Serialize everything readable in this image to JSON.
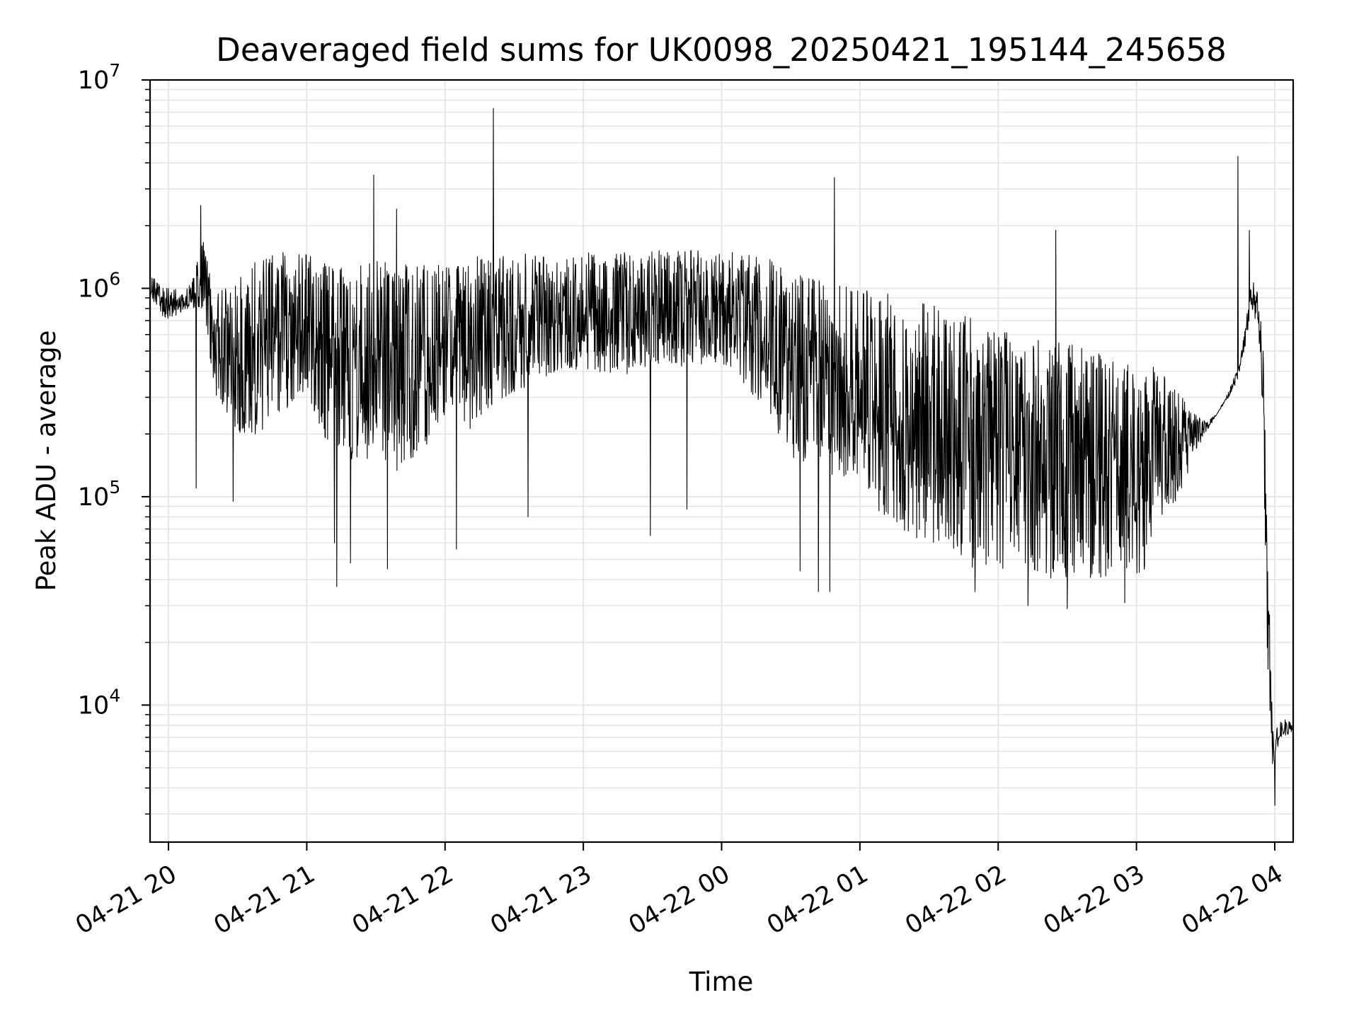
{
  "chart_data": {
    "type": "line",
    "title": "Deaveraged field sums for UK0098_20250421_195144_245658",
    "xlabel": "Time",
    "ylabel": "Peak ADU - average",
    "yscale": "log",
    "ylim": [
      2200,
      10000000
    ],
    "xlim": [
      "2025-04-21 19:52",
      "2025-04-22 04:08"
    ],
    "grid": true,
    "line_color": "#000000",
    "grid_color": "#e6e6e6",
    "x_ticks": [
      {
        "value": "2025-04-21 20:00",
        "label": "04-21 20"
      },
      {
        "value": "2025-04-21 21:00",
        "label": "04-21 21"
      },
      {
        "value": "2025-04-21 22:00",
        "label": "04-21 22"
      },
      {
        "value": "2025-04-21 23:00",
        "label": "04-21 23"
      },
      {
        "value": "2025-04-22 00:00",
        "label": "04-22 00"
      },
      {
        "value": "2025-04-22 01:00",
        "label": "04-22 01"
      },
      {
        "value": "2025-04-22 02:00",
        "label": "04-22 02"
      },
      {
        "value": "2025-04-22 03:00",
        "label": "04-22 03"
      },
      {
        "value": "2025-04-22 04:00",
        "label": "04-22 04"
      }
    ],
    "y_ticks": [
      {
        "value": 10000,
        "base": "10",
        "exp": "4"
      },
      {
        "value": 100000,
        "base": "10",
        "exp": "5"
      },
      {
        "value": 1000000,
        "base": "10",
        "exp": "6"
      },
      {
        "value": 10000000,
        "base": "10",
        "exp": "7"
      }
    ],
    "series": [
      {
        "x": [
          "2025-04-21 19:52",
          "2025-04-21 19:58",
          "2025-04-21 20:05",
          "2025-04-21 20:10",
          "2025-04-21 20:15",
          "2025-04-21 20:20",
          "2025-04-21 20:30",
          "2025-04-21 20:40",
          "2025-04-21 20:50",
          "2025-04-21 21:00",
          "2025-04-21 21:10",
          "2025-04-21 21:20",
          "2025-04-21 21:30",
          "2025-04-21 21:40",
          "2025-04-21 21:50",
          "2025-04-21 22:00",
          "2025-04-21 22:10",
          "2025-04-21 22:20",
          "2025-04-21 22:30",
          "2025-04-21 22:40",
          "2025-04-21 22:50",
          "2025-04-21 23:00",
          "2025-04-21 23:10",
          "2025-04-21 23:20",
          "2025-04-21 23:30",
          "2025-04-21 23:40",
          "2025-04-21 23:50",
          "2025-04-22 00:00",
          "2025-04-22 00:10",
          "2025-04-22 00:20",
          "2025-04-22 00:30",
          "2025-04-22 00:40",
          "2025-04-22 00:50",
          "2025-04-22 01:00",
          "2025-04-22 01:10",
          "2025-04-22 01:20",
          "2025-04-22 01:30",
          "2025-04-22 01:40",
          "2025-04-22 01:50",
          "2025-04-22 02:00",
          "2025-04-22 02:10",
          "2025-04-22 02:20",
          "2025-04-22 02:30",
          "2025-04-22 02:40",
          "2025-04-22 02:50",
          "2025-04-22 03:00",
          "2025-04-22 03:05",
          "2025-04-22 03:10",
          "2025-04-22 03:15",
          "2025-04-22 03:20",
          "2025-04-22 03:25",
          "2025-04-22 03:30",
          "2025-04-22 03:35",
          "2025-04-22 03:40",
          "2025-04-22 03:45",
          "2025-04-22 03:50",
          "2025-04-22 03:53",
          "2025-04-22 03:55",
          "2025-04-22 03:57",
          "2025-04-22 03:59",
          "2025-04-22 04:01",
          "2025-04-22 04:04",
          "2025-04-22 04:08"
        ],
        "upper": [
          1300000,
          1000000,
          1000000,
          1050000,
          1700000,
          900000,
          1200000,
          1400000,
          1500000,
          1450000,
          1300000,
          1250000,
          1350000,
          1300000,
          1300000,
          1300000,
          1400000,
          1450000,
          1500000,
          1500000,
          1500000,
          1500000,
          1450000,
          1500000,
          1550000,
          1550000,
          1550000,
          1550000,
          1450000,
          1400000,
          1200000,
          1100000,
          1050000,
          1000000,
          950000,
          900000,
          850000,
          800000,
          700000,
          650000,
          600000,
          550000,
          550000,
          500000,
          480000,
          460000,
          440000,
          400000,
          350000,
          300000,
          250000,
          230000,
          250000,
          320000,
          450000,
          1100000,
          1000000,
          600000,
          60000,
          9000,
          8500,
          8500,
          8500
        ],
        "lower": [
          900000,
          700000,
          750000,
          800000,
          800000,
          300000,
          200000,
          180000,
          250000,
          300000,
          150000,
          150000,
          150000,
          130000,
          150000,
          250000,
          200000,
          250000,
          300000,
          350000,
          380000,
          400000,
          380000,
          380000,
          400000,
          420000,
          420000,
          420000,
          330000,
          250000,
          150000,
          130000,
          120000,
          110000,
          80000,
          60000,
          60000,
          50000,
          45000,
          43000,
          40000,
          40000,
          37000,
          38000,
          40000,
          40000,
          45000,
          60000,
          80000,
          110000,
          150000,
          200000,
          250000,
          300000,
          380000,
          800000,
          600000,
          200000,
          9000,
          5000,
          5500,
          7000,
          7500
        ],
        "spikes": [
          {
            "x": "2025-04-21 20:14",
            "y": 2500000
          },
          {
            "x": "2025-04-21 21:29",
            "y": 3500000
          },
          {
            "x": "2025-04-21 21:39",
            "y": 2400000
          },
          {
            "x": "2025-04-21 22:21",
            "y": 7300000
          },
          {
            "x": "2025-04-22 00:49",
            "y": 3400000
          },
          {
            "x": "2025-04-22 02:25",
            "y": 1900000
          },
          {
            "x": "2025-04-22 03:44",
            "y": 4300000
          },
          {
            "x": "2025-04-22 03:49",
            "y": 1900000
          }
        ],
        "dips": [
          {
            "x": "2025-04-21 20:12",
            "y": 110000
          },
          {
            "x": "2025-04-21 20:28",
            "y": 95000
          },
          {
            "x": "2025-04-21 21:12",
            "y": 60000
          },
          {
            "x": "2025-04-21 21:13",
            "y": 37000
          },
          {
            "x": "2025-04-21 21:19",
            "y": 48000
          },
          {
            "x": "2025-04-21 21:35",
            "y": 45000
          },
          {
            "x": "2025-04-21 22:05",
            "y": 56000
          },
          {
            "x": "2025-04-21 22:36",
            "y": 80000
          },
          {
            "x": "2025-04-21 23:29",
            "y": 65000
          },
          {
            "x": "2025-04-21 23:45",
            "y": 87000
          },
          {
            "x": "2025-04-22 00:34",
            "y": 44000
          },
          {
            "x": "2025-04-22 00:42",
            "y": 35000
          },
          {
            "x": "2025-04-22 00:47",
            "y": 35000
          },
          {
            "x": "2025-04-22 01:50",
            "y": 35000
          },
          {
            "x": "2025-04-22 02:13",
            "y": 30000
          },
          {
            "x": "2025-04-22 02:30",
            "y": 29000
          },
          {
            "x": "2025-04-22 02:55",
            "y": 31000
          },
          {
            "x": "2025-04-22 04:00",
            "y": 3300
          }
        ]
      }
    ]
  }
}
